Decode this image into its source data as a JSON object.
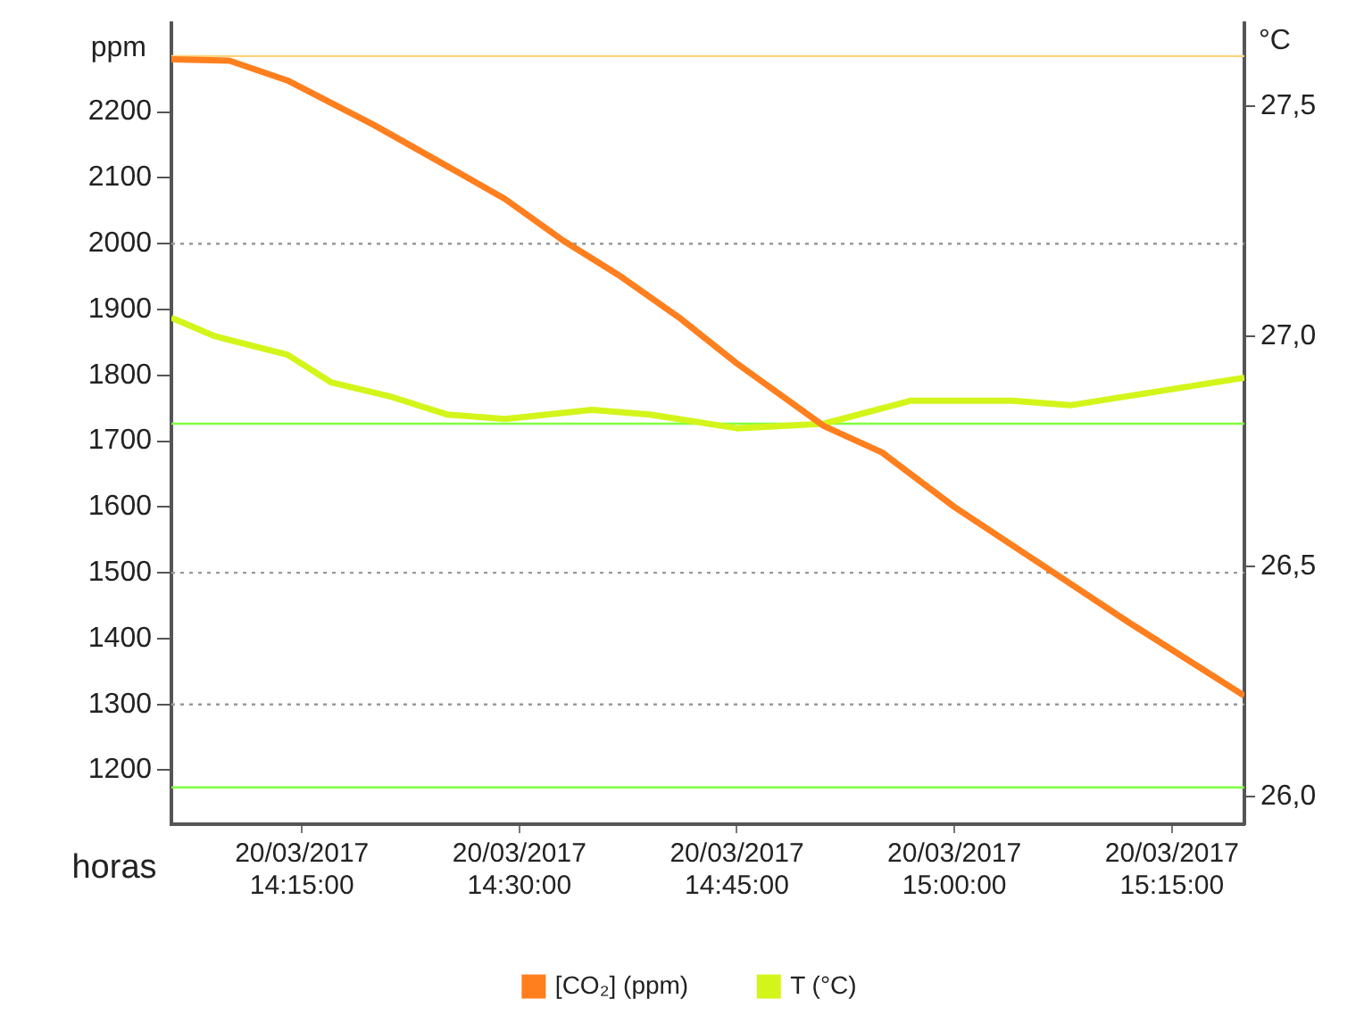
{
  "chart_data": {
    "type": "line",
    "xlabel": "horas",
    "ylabel": "ppm",
    "y2label": "°C",
    "xlim": [
      "2017-03-20T14:06",
      "2017-03-20T15:20"
    ],
    "xticks": [
      {
        "value": "2017-03-20T14:15",
        "label": "20/03/2017 14:15:00"
      },
      {
        "value": "2017-03-20T14:30",
        "label": "20/03/2017 14:30:00"
      },
      {
        "value": "2017-03-20T14:45",
        "label": "20/03/2017 14:45:00"
      },
      {
        "value": "2017-03-20T15:00",
        "label": "20/03/2017 15:00:00"
      },
      {
        "value": "2017-03-20T15:15",
        "label": "20/03/2017 15:15:00"
      }
    ],
    "ylim": [
      1118,
      2335
    ],
    "yticks": [
      1200,
      1300,
      1400,
      1500,
      1600,
      1700,
      1800,
      1900,
      2000,
      2100,
      2200
    ],
    "y2lim": [
      25.94,
      27.68
    ],
    "y2ticks": [
      {
        "value": 26.0,
        "label": "26,0"
      },
      {
        "value": 26.5,
        "label": "26,5"
      },
      {
        "value": 27.0,
        "label": "27,0"
      },
      {
        "value": 27.5,
        "label": "27,5"
      }
    ],
    "series": [
      {
        "name": "[CO₂] (ppm)",
        "color": "#ff7f1e",
        "x": [
          "2017-03-20T14:06",
          "2017-03-20T14:10",
          "2017-03-20T14:14",
          "2017-03-20T14:20",
          "2017-03-20T14:25",
          "2017-03-20T14:29",
          "2017-03-20T14:33",
          "2017-03-20T14:37",
          "2017-03-20T14:41",
          "2017-03-20T14:45",
          "2017-03-20T14:51",
          "2017-03-20T14:55",
          "2017-03-20T15:00",
          "2017-03-20T15:07",
          "2017-03-20T15:12",
          "2017-03-20T15:20"
        ],
        "values": [
          2280,
          2278,
          2248,
          2180,
          2118,
          2068,
          2005,
          1950,
          1888,
          1818,
          1723,
          1683,
          1600,
          1498,
          1425,
          1313
        ]
      },
      {
        "name": "T (°C)",
        "color": "#d4f51a",
        "axis": "y2",
        "x": [
          "2017-03-20T14:06",
          "2017-03-20T14:09",
          "2017-03-20T14:14",
          "2017-03-20T14:17",
          "2017-03-20T14:21",
          "2017-03-20T14:25",
          "2017-03-20T14:29",
          "2017-03-20T14:35",
          "2017-03-20T14:39",
          "2017-03-20T14:45",
          "2017-03-20T14:51",
          "2017-03-20T14:57",
          "2017-03-20T15:04",
          "2017-03-20T15:08",
          "2017-03-20T15:14",
          "2017-03-20T15:20"
        ],
        "values": [
          27.04,
          27.0,
          26.96,
          26.9,
          26.87,
          26.83,
          26.82,
          26.84,
          26.83,
          26.8,
          26.81,
          26.86,
          26.86,
          26.85,
          26.88,
          26.91
        ]
      }
    ],
    "ref_lines": [
      {
        "axis": "y",
        "value": 2285,
        "color": "#ffd27f",
        "line_style": "solid"
      },
      {
        "axis": "y2",
        "value": 26.81,
        "color": "#80ff40",
        "line_style": "solid"
      },
      {
        "axis": "y2",
        "value": 26.02,
        "color": "#80ff40",
        "line_style": "solid"
      },
      {
        "axis": "y",
        "value": 2000,
        "color": "#999999",
        "line_style": "dotted"
      },
      {
        "axis": "y",
        "value": 1500,
        "color": "#999999",
        "line_style": "dotted"
      },
      {
        "axis": "y",
        "value": 1300,
        "color": "#999999",
        "line_style": "dotted"
      }
    ],
    "grid": false,
    "legend": "bottom",
    "marker": "none",
    "line_style": "solid"
  }
}
